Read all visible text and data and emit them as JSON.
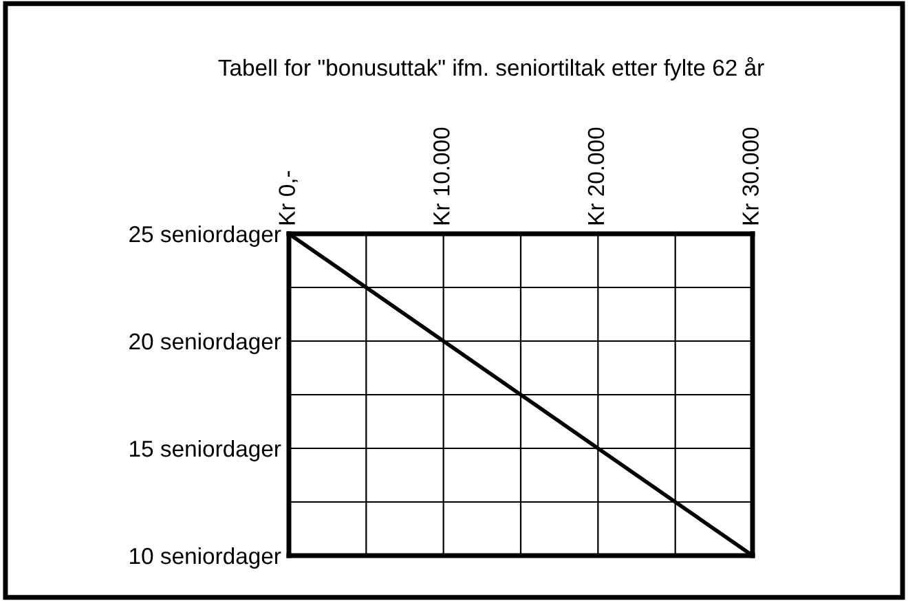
{
  "chart_data": {
    "type": "line",
    "title": "Tabell for \"bonusuttak\" ifm. seniortiltak etter fylte 62 år",
    "categories": [
      "Kr 0,-",
      null,
      "Kr 10.000",
      null,
      "Kr 20.000",
      null,
      "Kr 30.000"
    ],
    "series": [
      {
        "color": "#000000",
        "values": [
          25,
          22.5,
          20,
          17.5,
          15,
          12.5,
          10
        ]
      }
    ],
    "ylim": [
      10,
      25
    ],
    "yticks": [
      {
        "value": 10,
        "label": "10 seniordager"
      },
      {
        "value": 12.5,
        "label": null
      },
      {
        "value": 15,
        "label": "15 seniordager"
      },
      {
        "value": 17.5,
        "label": null
      },
      {
        "value": 20,
        "label": "20 seniordager"
      },
      {
        "value": 22.5,
        "label": null
      },
      {
        "value": 25,
        "label": "25 seniordager"
      }
    ],
    "grid": true,
    "marker": "none",
    "line_style": "solid"
  }
}
